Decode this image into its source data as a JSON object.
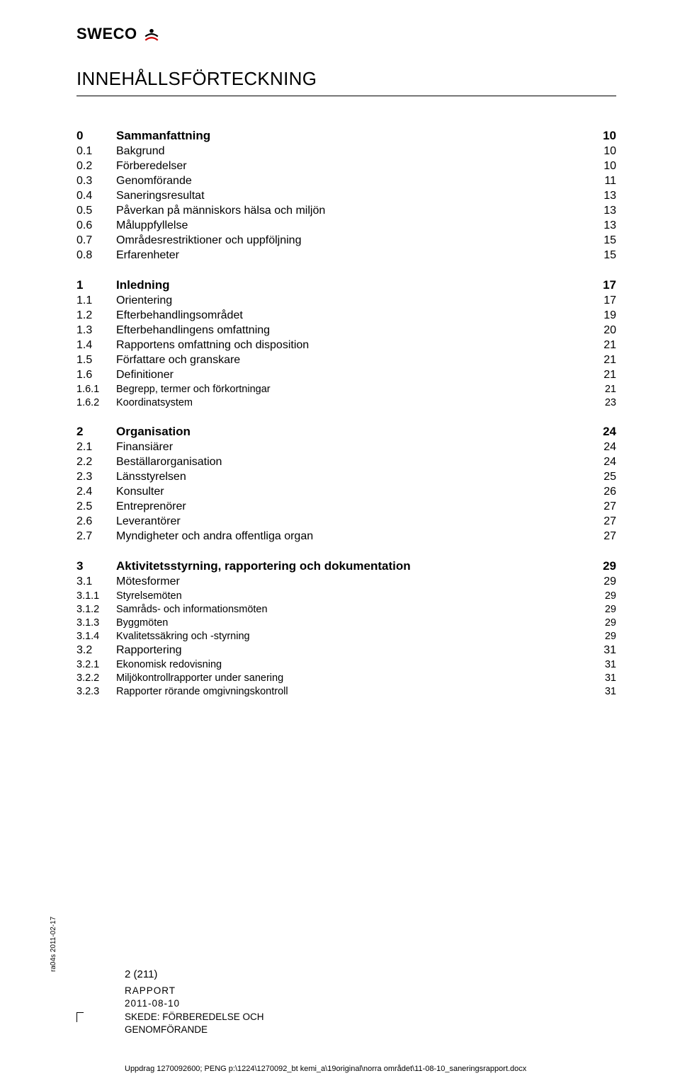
{
  "logo": {
    "text": "SWECO"
  },
  "title": "INNEHÅLLSFÖRTECKNING",
  "toc": [
    {
      "group": [
        {
          "lvl": 0,
          "num": "0",
          "label": "Sammanfattning",
          "page": "10"
        },
        {
          "lvl": 1,
          "num": "0.1",
          "label": "Bakgrund",
          "page": "10"
        },
        {
          "lvl": 1,
          "num": "0.2",
          "label": "Förberedelser",
          "page": "10"
        },
        {
          "lvl": 1,
          "num": "0.3",
          "label": "Genomförande",
          "page": "11"
        },
        {
          "lvl": 1,
          "num": "0.4",
          "label": "Saneringsresultat",
          "page": "13"
        },
        {
          "lvl": 1,
          "num": "0.5",
          "label": "Påverkan på människors hälsa och miljön",
          "page": "13"
        },
        {
          "lvl": 1,
          "num": "0.6",
          "label": "Måluppfyllelse",
          "page": "13"
        },
        {
          "lvl": 1,
          "num": "0.7",
          "label": "Områdesrestriktioner och uppföljning",
          "page": "15"
        },
        {
          "lvl": 1,
          "num": "0.8",
          "label": "Erfarenheter",
          "page": "15"
        }
      ]
    },
    {
      "group": [
        {
          "lvl": 0,
          "num": "1",
          "label": "Inledning",
          "page": "17"
        },
        {
          "lvl": 1,
          "num": "1.1",
          "label": "Orientering",
          "page": "17"
        },
        {
          "lvl": 1,
          "num": "1.2",
          "label": "Efterbehandlingsområdet",
          "page": "19"
        },
        {
          "lvl": 1,
          "num": "1.3",
          "label": "Efterbehandlingens omfattning",
          "page": "20"
        },
        {
          "lvl": 1,
          "num": "1.4",
          "label": "Rapportens omfattning och disposition",
          "page": "21"
        },
        {
          "lvl": 1,
          "num": "1.5",
          "label": "Författare och granskare",
          "page": "21"
        },
        {
          "lvl": 1,
          "num": "1.6",
          "label": "Definitioner",
          "page": "21"
        },
        {
          "lvl": 2,
          "num": "1.6.1",
          "label": "Begrepp, termer och förkortningar",
          "page": "21"
        },
        {
          "lvl": 2,
          "num": "1.6.2",
          "label": "Koordinatsystem",
          "page": "23"
        }
      ]
    },
    {
      "group": [
        {
          "lvl": 0,
          "num": "2",
          "label": "Organisation",
          "page": "24"
        },
        {
          "lvl": 1,
          "num": "2.1",
          "label": "Finansiärer",
          "page": "24"
        },
        {
          "lvl": 1,
          "num": "2.2",
          "label": "Beställarorganisation",
          "page": "24"
        },
        {
          "lvl": 1,
          "num": "2.3",
          "label": "Länsstyrelsen",
          "page": "25"
        },
        {
          "lvl": 1,
          "num": "2.4",
          "label": "Konsulter",
          "page": "26"
        },
        {
          "lvl": 1,
          "num": "2.5",
          "label": "Entreprenörer",
          "page": "27"
        },
        {
          "lvl": 1,
          "num": "2.6",
          "label": "Leverantörer",
          "page": "27"
        },
        {
          "lvl": 1,
          "num": "2.7",
          "label": "Myndigheter och andra offentliga organ",
          "page": "27"
        }
      ]
    },
    {
      "group": [
        {
          "lvl": 0,
          "num": "3",
          "label": "Aktivitetsstyrning, rapportering och dokumentation",
          "page": "29"
        },
        {
          "lvl": 1,
          "num": "3.1",
          "label": "Mötesformer",
          "page": "29"
        },
        {
          "lvl": 2,
          "num": "3.1.1",
          "label": "Styrelsemöten",
          "page": "29"
        },
        {
          "lvl": 2,
          "num": "3.1.2",
          "label": "Samråds- och informationsmöten",
          "page": "29"
        },
        {
          "lvl": 2,
          "num": "3.1.3",
          "label": "Byggmöten",
          "page": "29"
        },
        {
          "lvl": 2,
          "num": "3.1.4",
          "label": "Kvalitetssäkring och -styrning",
          "page": "29"
        },
        {
          "lvl": 1,
          "num": "3.2",
          "label": "Rapportering",
          "page": "31"
        },
        {
          "lvl": 2,
          "num": "3.2.1",
          "label": "Ekonomisk redovisning",
          "page": "31"
        },
        {
          "lvl": 2,
          "num": "3.2.2",
          "label": "Miljökontrollrapporter under sanering",
          "page": "31"
        },
        {
          "lvl": 2,
          "num": "3.2.3",
          "label": "Rapporter rörande omgivningskontroll",
          "page": "31"
        }
      ]
    }
  ],
  "footer": {
    "pagecount": "2 (211)",
    "rapport_label": "RAPPORT",
    "date": "2011-08-10",
    "skede_line1": "SKEDE: FÖRBEREDELSE OCH",
    "skede_line2": "GENOMFÖRANDE",
    "sidelabel": "ra04s 2011-02-17",
    "path": "Uppdrag 1270092600; PENG  p:\\1224\\1270092_bt kemi_a\\19original\\norra området\\11-08-10_saneringsrapport.docx"
  }
}
